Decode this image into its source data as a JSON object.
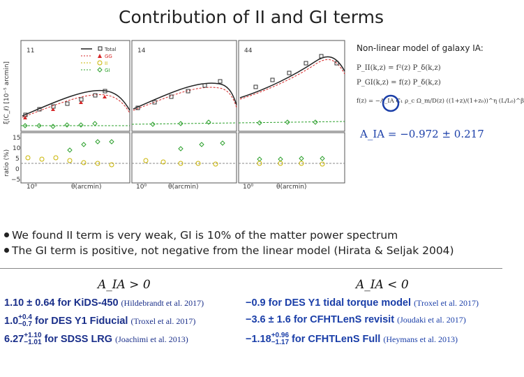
{
  "title": "Contribution of II and GI terms",
  "plot": {
    "panel_numbers": [
      "11",
      "14",
      "44"
    ],
    "y_label_top": "ξ(C_ℓ) [10⁻⁵ arcmin]",
    "y_label_bottom": "ratio (%)",
    "x_label": "θ(arcmin)",
    "x_tick": "10⁰",
    "y_ticks_bottom": [
      "15",
      "10",
      "5",
      "0",
      "−5"
    ],
    "legend": [
      "Total",
      "GG",
      "II",
      "GI"
    ],
    "colors": {
      "total": "#222222",
      "gg": "#d62728",
      "ii": "#c9b400",
      "gi": "#2ca02c"
    }
  },
  "nonlinear": {
    "title": "Non-linear model of galaxy IA:",
    "eq1": "P_II(k,z) = f²(z) P_δ(k,z)",
    "eq2": "P_GI(k,z) = f(z) P_δ(k,z)",
    "eq3": "f(z) = −A_IA C₁ ρ_c Ω_m/D(z) ((1+z)/(1+z₀))^η (L/L₀)^β",
    "aia": "A_IA = −0.972 ± 0.217"
  },
  "bullets": [
    "We found II term is very weak, GI is 10% of the matter power spectrum",
    "The GI term is positive, not negative from the linear model (Hirata & Seljak 2004)"
  ],
  "table": {
    "left_head": "A_IA > 0",
    "right_head": "A_IA < 0",
    "left_rows": [
      {
        "value": "1.10 ± 0.64 for KiDS-450",
        "ref": "(Hildebrandt et al. 2017)"
      },
      {
        "value": "1.0",
        "sup": "+0.4",
        "sub": "−0.7",
        "text": "for DES Y1 Fiducial",
        "ref": "(Troxel et al. 2017)"
      },
      {
        "value": "6.27",
        "sup": "+1.10",
        "sub": "−1.01",
        "text": "for SDSS LRG",
        "ref": "(Joachimi et al. 2013)"
      }
    ],
    "right_rows": [
      {
        "value": "−0.9 for DES Y1 tidal torque model",
        "ref": "(Troxel et al. 2017)"
      },
      {
        "value": "−3.6 ± 1.6 for CFHTLenS revisit",
        "ref": "(Joudaki et al. 2017)"
      },
      {
        "value": "−1.18",
        "sup": "+0.96",
        "sub": "−1.17",
        "text": "for CFHTLenS Full",
        "ref": "(Heymans et al. 2013)"
      }
    ]
  }
}
